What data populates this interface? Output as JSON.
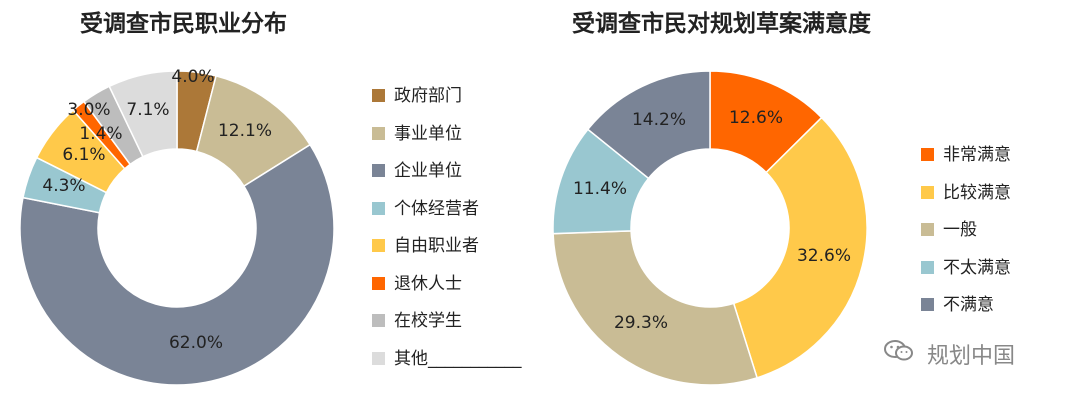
{
  "chart_data": [
    {
      "type": "pie",
      "title": "受调查市民职业分布",
      "categories": [
        "政府部门",
        "事业单位",
        "企业单位",
        "个体经营者",
        "自由职业者",
        "退休人士",
        "在校学生",
        "其他___________"
      ],
      "values": [
        4.0,
        12.1,
        62.0,
        4.3,
        6.1,
        1.4,
        3.0,
        7.1
      ],
      "labels": [
        "4.0%",
        "12.1%",
        "62.0%",
        "4.3%",
        "6.1%",
        "1.4%",
        "3.0%",
        "7.1%"
      ],
      "colors": [
        "#AC7838",
        "#C9BC95",
        "#7A8496",
        "#99C7D0",
        "#FFC94A",
        "#FF6600",
        "#BDBDBD",
        "#DCDCDC"
      ],
      "donut": true,
      "legend": "right"
    },
    {
      "type": "pie",
      "title": "受调查市民对规划草案满意度",
      "categories": [
        "非常满意",
        "比较满意",
        "一般",
        "不太满意",
        "不满意"
      ],
      "values": [
        12.6,
        32.6,
        29.3,
        11.4,
        14.2
      ],
      "labels": [
        "12.6%",
        "32.6%",
        "29.3%",
        "11.4%",
        "14.2%"
      ],
      "colors": [
        "#FF6600",
        "#FFC94A",
        "#C9BC95",
        "#99C7D0",
        "#7A8496"
      ],
      "donut": true,
      "legend": "right"
    }
  ],
  "watermark": {
    "text": "规划中国",
    "icon": "wechat-icon"
  }
}
